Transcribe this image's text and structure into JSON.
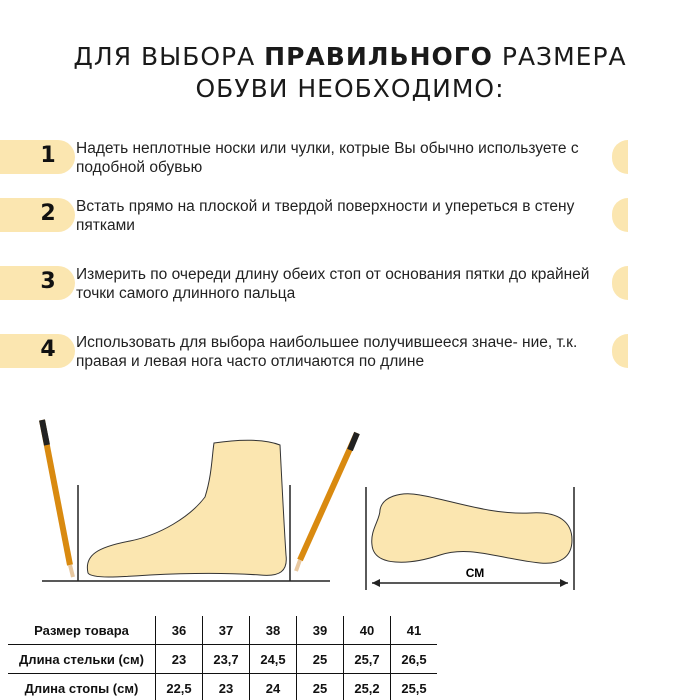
{
  "title": {
    "line1_prefix": "ДЛЯ ВЫБОРА ",
    "line1_bold": "ПРАВИЛЬНОГО",
    "line1_suffix": " РАЗМЕРА",
    "line2": "ОБУВИ НЕОБХОДИМО:"
  },
  "steps": [
    {
      "number": "1",
      "text": "Надеть неплотные носки или чулки, котрые Вы обычно используете с подобной обувью"
    },
    {
      "number": "2",
      "text": "Встать прямо на плоской и твердой поверхности и упереться в стену пятками"
    },
    {
      "number": "3",
      "text": "Измерить по очереди длину обеих стоп от основания пятки до крайней точки самого длинного пальца"
    },
    {
      "number": "4",
      "text": "Использовать для выбора наибольшее получившееся значе- ние, т.к. правая и левая нога часто отличаются по длине"
    }
  ],
  "diagram": {
    "unit_label": "СМ"
  },
  "colors": {
    "accent": "#fbe6b0",
    "foot": "#fbe6b0"
  },
  "size_table": {
    "rows": [
      {
        "label": "Размер товара",
        "values": [
          "36",
          "37",
          "38",
          "39",
          "40",
          "41"
        ]
      },
      {
        "label": "Длина стельки (см)",
        "values": [
          "23",
          "23,7",
          "24,5",
          "25",
          "25,7",
          "26,5"
        ]
      },
      {
        "label": "Длина стопы (см)",
        "values": [
          "22,5",
          "23",
          "24",
          "25",
          "25,2",
          "25,5"
        ]
      }
    ]
  }
}
